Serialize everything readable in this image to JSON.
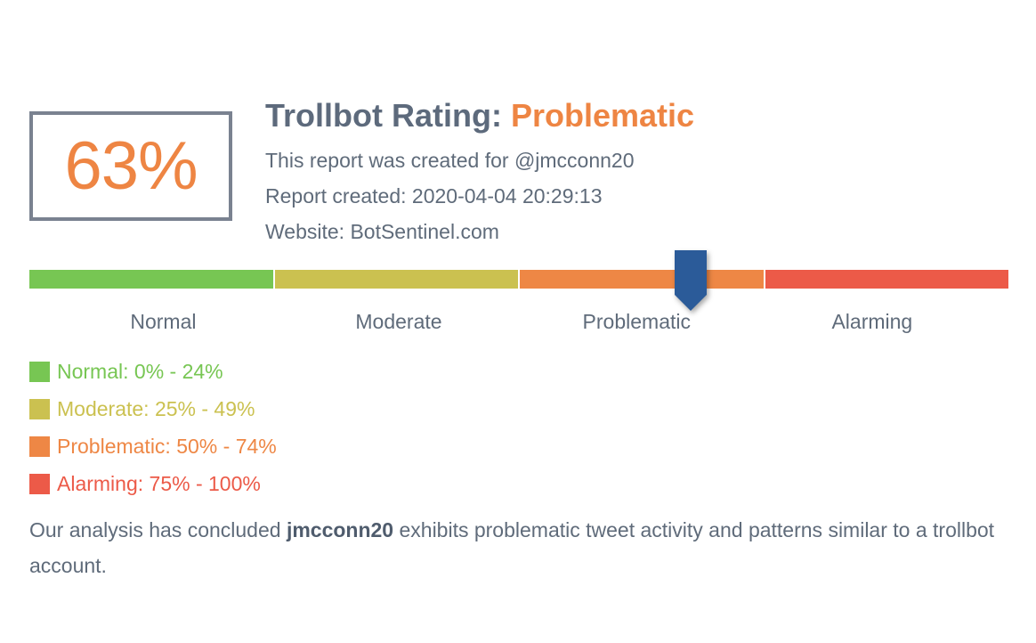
{
  "score": {
    "value": "63%",
    "fraction": 0.63
  },
  "header": {
    "title_prefix": "Trollbot Rating: ",
    "rating": "Problematic",
    "created_for": "This report was created for @jmcconn20",
    "created_at": "Report created: 2020-04-04 20:29:13",
    "website": "Website: BotSentinel.com"
  },
  "scale": {
    "segments": [
      {
        "label": "Normal",
        "color": "#77c653"
      },
      {
        "label": "Moderate",
        "color": "#cbc150"
      },
      {
        "label": "Problematic",
        "color": "#ee8745"
      },
      {
        "label": "Alarming",
        "color": "#ec5a48"
      }
    ],
    "marker_color": "#2b5b99"
  },
  "legend": [
    {
      "text": "Normal: 0% - 24%",
      "color": "#77c653"
    },
    {
      "text": "Moderate: 25% - 49%",
      "color": "#cbc150"
    },
    {
      "text": "Problematic: 50% - 74%",
      "color": "#ee8745"
    },
    {
      "text": "Alarming: 75% - 100%",
      "color": "#ec5a48"
    }
  ],
  "summary": {
    "before": "Our analysis has concluded ",
    "account": "jmcconn20",
    "after": " exhibits problematic tweet activity and patterns similar to a trollbot account."
  }
}
